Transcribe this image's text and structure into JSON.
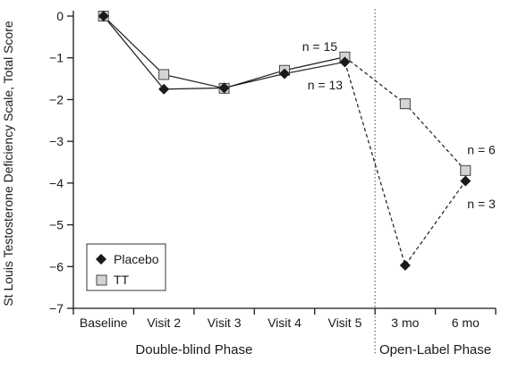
{
  "chart_data": {
    "type": "line",
    "title": "",
    "ylabel": "St Louis Testosterone Deficiency Scale, Total Score",
    "xlabel": "",
    "categories": [
      "Baseline",
      "Visit 2",
      "Visit 3",
      "Visit 4",
      "Visit 5",
      "3 mo",
      "6 mo"
    ],
    "ylim": [
      -7,
      0
    ],
    "yticks": [
      0,
      -1,
      -2,
      -3,
      -4,
      -5,
      -6,
      -7
    ],
    "ytick_labels": [
      "0",
      "−1",
      "−2",
      "−3",
      "−4",
      "−5",
      "−6",
      "−7"
    ],
    "grid": false,
    "legend_position": "bottom-left",
    "phase_divider_after": "Visit 5",
    "phases": [
      {
        "label": "Double-blind Phase",
        "from": "Baseline",
        "to": "Visit 4"
      },
      {
        "label": "Open-Label Phase",
        "from": "3 mo",
        "to": "6 mo"
      }
    ],
    "series": [
      {
        "name": "Placebo",
        "marker": "diamond",
        "color": "#1a1a1a",
        "values": [
          0,
          -1.75,
          -1.72,
          -1.38,
          -1.1,
          -5.97,
          -3.95
        ]
      },
      {
        "name": "TT",
        "marker": "square",
        "color": "#d4d4d4",
        "values": [
          0,
          -1.4,
          -1.73,
          -1.3,
          -0.98,
          -2.1,
          -3.7
        ]
      }
    ],
    "solid_until": "Visit 5",
    "annotations": [
      {
        "text": "n = 15",
        "x": "Visit 5",
        "y": -0.73
      },
      {
        "text": "n = 13",
        "x": "Visit 5",
        "y": -1.65
      },
      {
        "text": "n = 6",
        "x": "6 mo",
        "y": -3.2
      },
      {
        "text": "n = 3",
        "x": "6 mo",
        "y": -4.5
      }
    ]
  }
}
